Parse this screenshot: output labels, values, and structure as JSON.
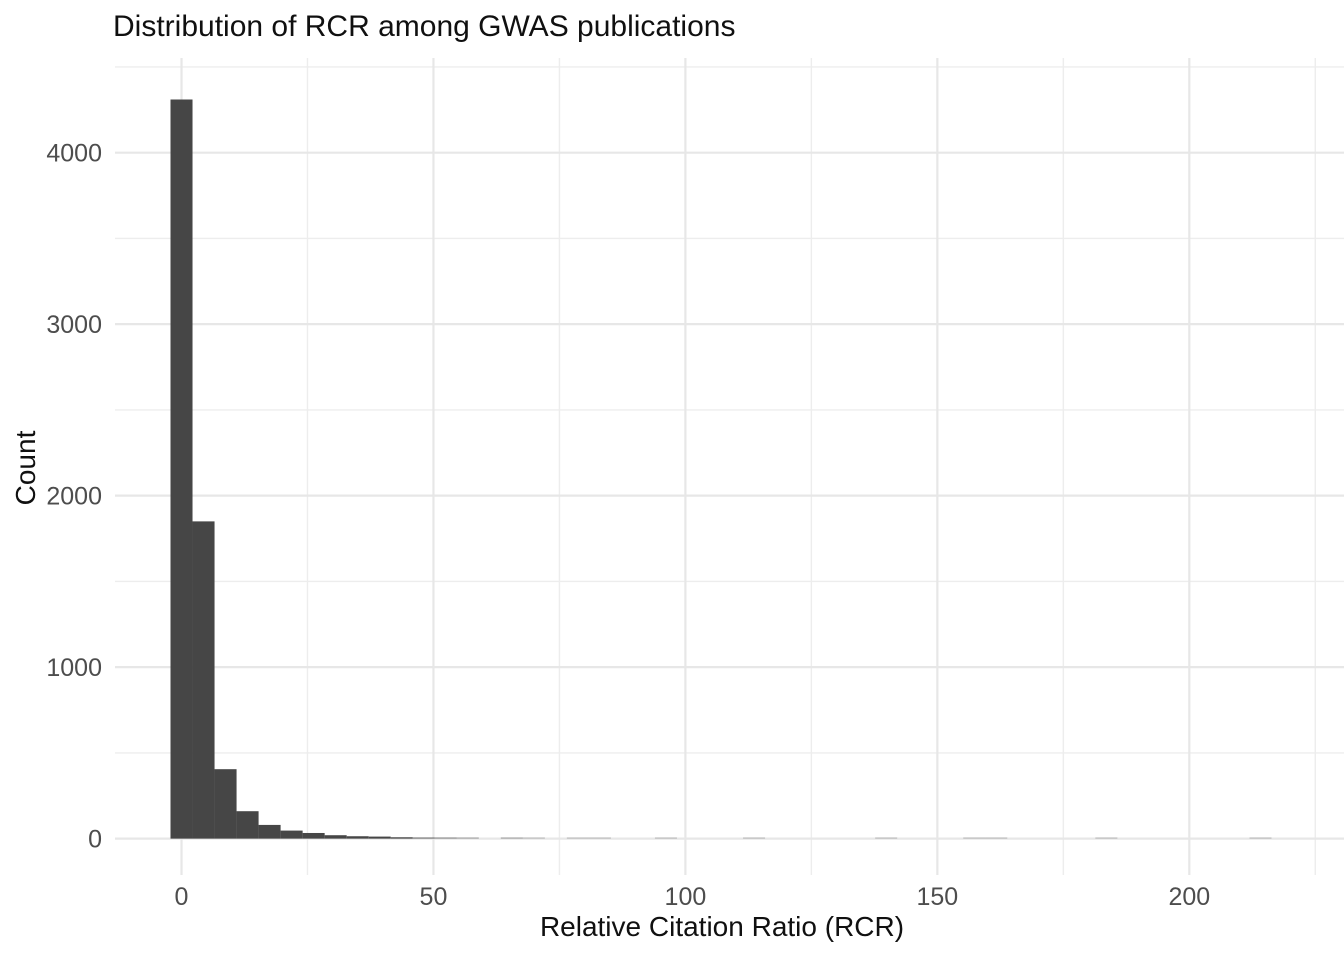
{
  "title": "Distribution of RCR among GWAS publications",
  "axes": {
    "x": {
      "title": "Relative Citation Ratio (RCR)",
      "major_ticks": [
        0,
        50,
        100,
        150,
        200
      ],
      "minor_ticks": [
        25,
        75,
        125,
        175,
        225
      ]
    },
    "y": {
      "title": "Count",
      "major_ticks": [
        0,
        1000,
        2000,
        3000,
        4000
      ],
      "minor_ticks": [
        500,
        1500,
        2500,
        3500,
        4500
      ]
    }
  },
  "colors": {
    "bar_fill": "#464646",
    "grid_major": "#e7e7e7",
    "grid_minor": "#ededed",
    "tick_label": "#4d4d4d",
    "title_text": "#101010",
    "background": "#ffffff"
  },
  "chart_data": {
    "type": "bar",
    "subtype": "histogram",
    "title": "Distribution of RCR among GWAS publications",
    "xlabel": "Relative Citation Ratio (RCR)",
    "ylabel": "Count",
    "grid": "major+minor",
    "legend": "none",
    "binwidth": 4.37,
    "xlim": [
      -13.2,
      230.7
    ],
    "ylim": [
      -212,
      4552
    ],
    "bin_centers": [
      0,
      4.37,
      8.74,
      13.11,
      17.48,
      21.85,
      26.22,
      30.59,
      34.96,
      39.33,
      43.7,
      48.07,
      52.44,
      56.81,
      61.18,
      65.55,
      69.92,
      74.29,
      78.66,
      83.03,
      87.4,
      91.77,
      96.14,
      100.51,
      104.88,
      109.25,
      113.62,
      117.99,
      122.36,
      126.73,
      131.1,
      135.47,
      139.84,
      144.21,
      148.58,
      152.95,
      157.32,
      161.69,
      166.06,
      170.43,
      174.8,
      179.17,
      183.54,
      187.91,
      192.28,
      196.65,
      201.02,
      205.39,
      209.76,
      214.13
    ],
    "counts": [
      4310,
      1850,
      405,
      160,
      80,
      47,
      33,
      20,
      14,
      12,
      8,
      5,
      4,
      3,
      0,
      3,
      2,
      0,
      1,
      1,
      0,
      0,
      1,
      0,
      0,
      0,
      1,
      0,
      0,
      0,
      0,
      0,
      1,
      0,
      0,
      0,
      1,
      1,
      0,
      0,
      0,
      0,
      1,
      0,
      0,
      0,
      0,
      0,
      0,
      1
    ]
  }
}
